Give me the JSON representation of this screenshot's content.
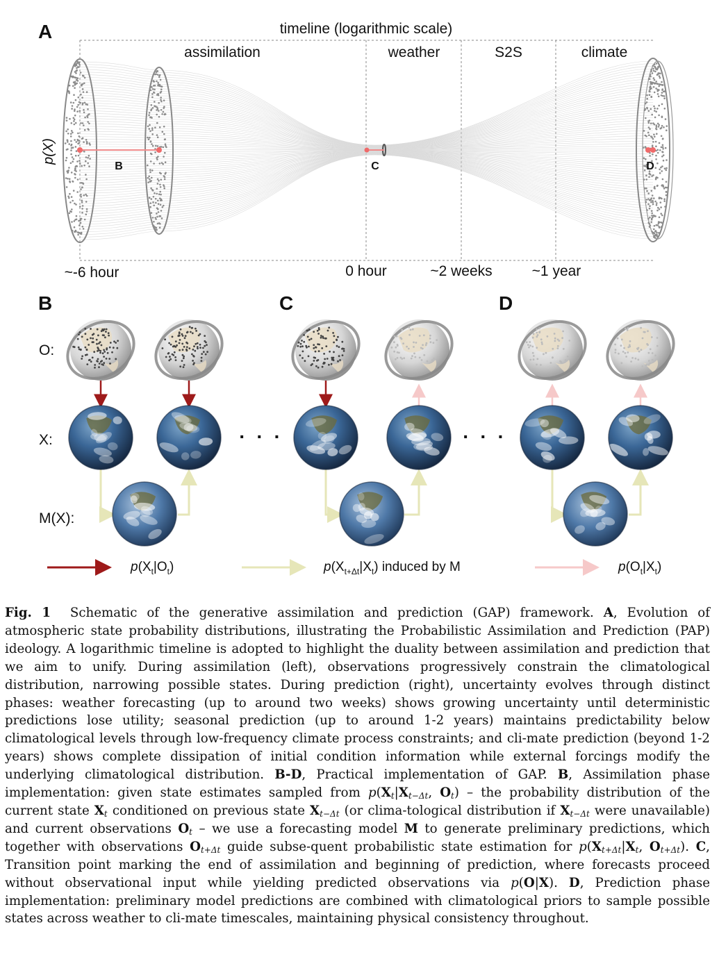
{
  "panelA": {
    "letter": "A",
    "title": "timeline (logarithmic scale)",
    "phases": [
      "assimilation",
      "weather",
      "S2S",
      "climate"
    ],
    "ticks": [
      "~-6 hour",
      "0 hour",
      "~2 weeks",
      "~1 year"
    ],
    "ylabel": "p(X)",
    "points": [
      "B",
      "C",
      "D"
    ]
  },
  "panels": {
    "B": "B",
    "C": "C",
    "D": "D"
  },
  "rows": {
    "O": "O:",
    "X": "X:",
    "M": "M(X):"
  },
  "ellipsis": "· · ·",
  "legend": {
    "red": {
      "label": "p(X<sub>t</sub>|O<sub>t</sub>)",
      "color": "#9e1a1a"
    },
    "yellow": {
      "label": "p(X<sub>t+Δt</sub>|X<sub>t</sub>) induced by M",
      "color": "#e6e6b8"
    },
    "pink": {
      "label": "p(O<sub>t</sub>|X<sub>t</sub>)",
      "color": "#f6c9c9"
    }
  },
  "caption": {
    "label": "Fig. 1",
    "html": "Schematic of the generative assimilation and prediction (GAP) framework. <b>A</b>, Evolution of atmospheric state probability distributions, illustrating the Probabilistic Assimilation and Prediction (PAP) ideology. A logarithmic timeline is adopted to highlight the duality between assimilation and prediction that we aim to unify. During assimilation (left), observations progressively constrain the climatological distribution, narrowing possible states. During prediction (right), uncertainty evolves through distinct phases: weather forecasting (up to around two weeks) shows growing uncertainty until deterministic predictions lose utility; seasonal prediction (up to around 1-2 years) maintains predictability below climatological levels through low-frequency climate process constraints; and cli-mate prediction (beyond 1-2 years) shows complete dissipation of initial condition information while external forcings modify the underlying climatological distribution. <b>B-D</b>, Practical implementation of GAP. <b>B</b>, Assimilation phase implementation: given state estimates sampled from <span class=\"nb\"><i>p</i>(<span class=\"mb\">X</span><sub>t</sub>|<span class=\"mb\">X</span><sub>t−Δt</sub>, <span class=\"mb\">O</span><sub>t</sub>)</span> – the probability distribution of the current state <span class=\"mb\">X</span><sub>t</sub> conditioned on previous state <span class=\"mb\">X</span><sub>t−Δt</sub> (or clima-tological distribution if <span class=\"mb\">X</span><sub>t−Δt</sub> were unavailable) and current observations <span class=\"mb\">O</span><sub>t</sub> – we use a forecasting model <span class=\"mb\">M</span> to generate preliminary predictions, which together with observations <span class=\"mb\">O</span><sub>t+Δt</sub> guide subse-quent probabilistic state estimation for <span class=\"nb\"><i>p</i>(<span class=\"mb\">X</span><sub>t+Δt</sub>|<span class=\"mb\">X</span><sub>t</sub>, <span class=\"mb\">O</span><sub>t+Δt</sub>)</span>. <b>C</b>, Transition point marking the end of assimilation and beginning of prediction, where forecasts proceed without observational input while yielding predicted observations via <i>p</i>(<span class=\"mb\">O</span>|<span class=\"mb\">X</span>). <b>D</b>, Prediction phase implementation: preliminary model predictions are combined with climatological priors to sample possible states across weather to cli-mate timescales, maintaining physical consistency throughout."
  }
}
